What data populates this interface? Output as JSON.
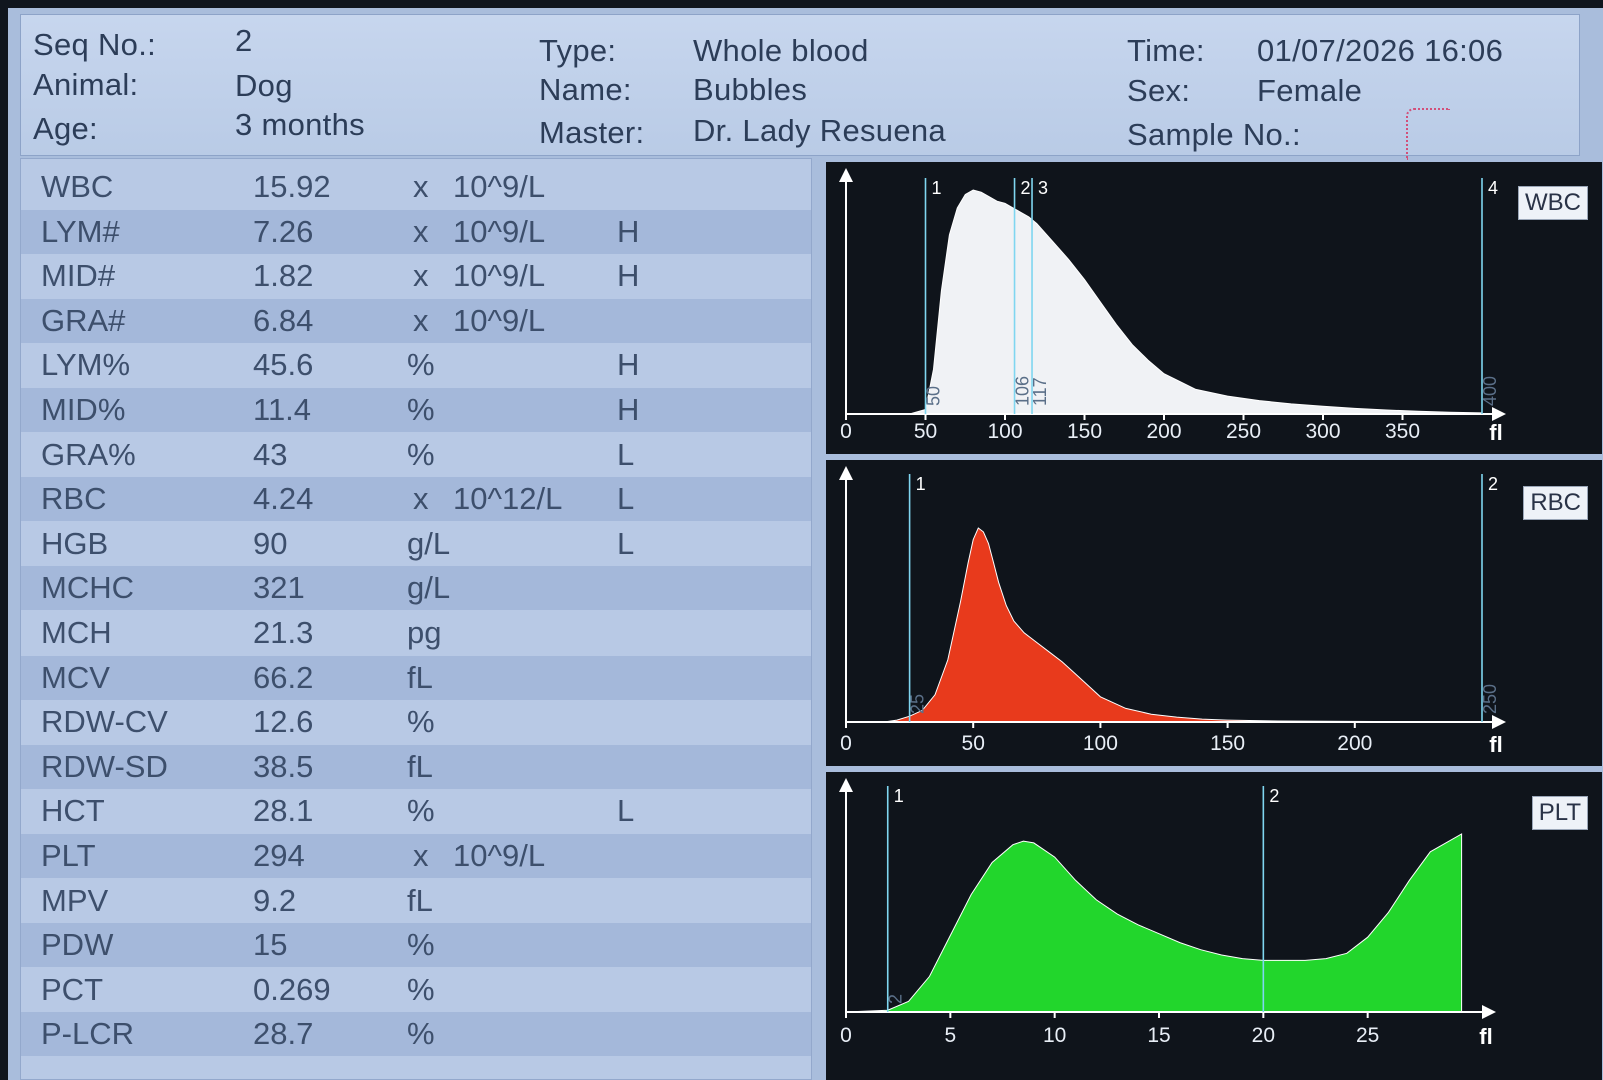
{
  "header": {
    "seq_label": "Seq No.:",
    "seq_value": "2",
    "animal_label": "Animal:",
    "animal_value": "Dog",
    "age_label": "Age:",
    "age_value": "3 months",
    "type_label": "Type:",
    "type_value": "Whole blood",
    "name_label": "Name:",
    "name_value": "Bubbles",
    "master_label": "Master:",
    "master_value": "Dr. Lady Resuena",
    "time_label": "Time:",
    "time_value": "01/07/2026 16:06",
    "sex_label": "Sex:",
    "sex_value": "Female",
    "sample_label": "Sample No.:",
    "sample_value": ""
  },
  "results": [
    {
      "name": "WBC",
      "value": "15.92",
      "x": "x",
      "unit": "10^9/L",
      "flag": ""
    },
    {
      "name": "LYM#",
      "value": "7.26",
      "x": "x",
      "unit": "10^9/L",
      "flag": "H"
    },
    {
      "name": "MID#",
      "value": "1.82",
      "x": "x",
      "unit": "10^9/L",
      "flag": "H"
    },
    {
      "name": "GRA#",
      "value": "6.84",
      "x": "x",
      "unit": "10^9/L",
      "flag": ""
    },
    {
      "name": "LYM%",
      "value": "45.6",
      "x": "",
      "unit": "%",
      "flag": "H"
    },
    {
      "name": "MID%",
      "value": "11.4",
      "x": "",
      "unit": "%",
      "flag": "H"
    },
    {
      "name": "GRA%",
      "value": "43",
      "x": "",
      "unit": "%",
      "flag": "L"
    },
    {
      "name": "RBC",
      "value": "4.24",
      "x": "x",
      "unit": "10^12/L",
      "flag": "L"
    },
    {
      "name": "HGB",
      "value": "90",
      "x": "",
      "unit": "g/L",
      "flag": "L"
    },
    {
      "name": "MCHC",
      "value": "321",
      "x": "",
      "unit": "g/L",
      "flag": ""
    },
    {
      "name": "MCH",
      "value": "21.3",
      "x": "",
      "unit": "pg",
      "flag": ""
    },
    {
      "name": "MCV",
      "value": "66.2",
      "x": "",
      "unit": "fL",
      "flag": ""
    },
    {
      "name": "RDW-CV",
      "value": "12.6",
      "x": "",
      "unit": "%",
      "flag": ""
    },
    {
      "name": "RDW-SD",
      "value": "38.5",
      "x": "",
      "unit": "fL",
      "flag": ""
    },
    {
      "name": "HCT",
      "value": "28.1",
      "x": "",
      "unit": "%",
      "flag": "L"
    },
    {
      "name": "PLT",
      "value": "294",
      "x": "x",
      "unit": "10^9/L",
      "flag": ""
    },
    {
      "name": "MPV",
      "value": "9.2",
      "x": "",
      "unit": "fL",
      "flag": ""
    },
    {
      "name": "PDW",
      "value": "15",
      "x": "",
      "unit": "%",
      "flag": ""
    },
    {
      "name": "PCT",
      "value": "0.269",
      "x": "",
      "unit": "%",
      "flag": ""
    },
    {
      "name": "P-LCR",
      "value": "28.7",
      "x": "",
      "unit": "%",
      "flag": ""
    }
  ],
  "chart_data": [
    {
      "type": "area",
      "label": "WBC",
      "axis_unit": "fl",
      "xlim": [
        0,
        400
      ],
      "xticks": [
        "0",
        "50",
        "100",
        "150",
        "200",
        "250",
        "300",
        "350"
      ],
      "fill_color": "#f0f2f5",
      "x": [
        0,
        40,
        50,
        55,
        60,
        65,
        70,
        75,
        80,
        85,
        90,
        95,
        100,
        105,
        110,
        115,
        120,
        130,
        140,
        150,
        160,
        170,
        180,
        190,
        200,
        220,
        240,
        260,
        280,
        300,
        320,
        340,
        360,
        380,
        400
      ],
      "y": [
        0,
        0,
        2,
        20,
        55,
        80,
        92,
        98,
        100,
        99,
        97,
        95,
        94,
        92,
        90,
        88,
        85,
        77,
        69,
        60,
        50,
        40,
        31,
        24,
        18,
        11,
        8,
        6,
        4.5,
        3.5,
        2.5,
        1.8,
        1.2,
        0.8,
        0.5
      ],
      "markers": [
        {
          "id": "1",
          "x": 50,
          "label": "50"
        },
        {
          "id": "2",
          "x": 106,
          "label": "106"
        },
        {
          "id": "3",
          "x": 117,
          "label": "117"
        },
        {
          "id": "4",
          "x": 400,
          "label": "400"
        }
      ]
    },
    {
      "type": "area",
      "label": "RBC",
      "axis_unit": "fl",
      "xlim": [
        0,
        250
      ],
      "xticks": [
        "0",
        "50",
        "100",
        "150",
        "200"
      ],
      "fill_color": "#e83a1c",
      "x": [
        0,
        15,
        20,
        25,
        30,
        35,
        40,
        45,
        48,
        50,
        52,
        54,
        56,
        58,
        60,
        63,
        66,
        70,
        75,
        80,
        85,
        90,
        95,
        100,
        110,
        120,
        130,
        140,
        150,
        170,
        250
      ],
      "y": [
        0,
        0,
        1,
        3,
        6,
        14,
        32,
        62,
        82,
        94,
        100,
        98,
        92,
        82,
        72,
        60,
        52,
        46,
        41,
        36,
        31,
        25,
        19,
        13,
        7,
        4,
        2.5,
        1.5,
        1,
        0.5,
        0
      ],
      "markers": [
        {
          "id": "1",
          "x": 25,
          "label": "25"
        },
        {
          "id": "2",
          "x": 250,
          "label": "250"
        }
      ]
    },
    {
      "type": "area",
      "label": "PLT",
      "axis_unit": "fl",
      "xlim": [
        0,
        30
      ],
      "xticks": [
        "0",
        "5",
        "10",
        "15",
        "20",
        "25"
      ],
      "fill_color": "#22d62c",
      "x": [
        0,
        2,
        3,
        4,
        5,
        6,
        7,
        8,
        8.5,
        9,
        10,
        11,
        12,
        13,
        14,
        15,
        16,
        17,
        18,
        19,
        20,
        21,
        22,
        23,
        24,
        25,
        26,
        27,
        28,
        29.5
      ],
      "y": [
        0,
        1,
        6,
        20,
        43,
        66,
        84,
        94,
        96,
        95,
        87,
        74,
        63,
        55,
        49,
        44,
        39,
        35,
        32,
        30,
        29,
        29,
        29,
        30,
        33,
        42,
        56,
        74,
        90,
        100
      ],
      "markers": [
        {
          "id": "1",
          "x": 2,
          "label": "2"
        },
        {
          "id": "2",
          "x": 20,
          "label": ""
        }
      ]
    }
  ]
}
